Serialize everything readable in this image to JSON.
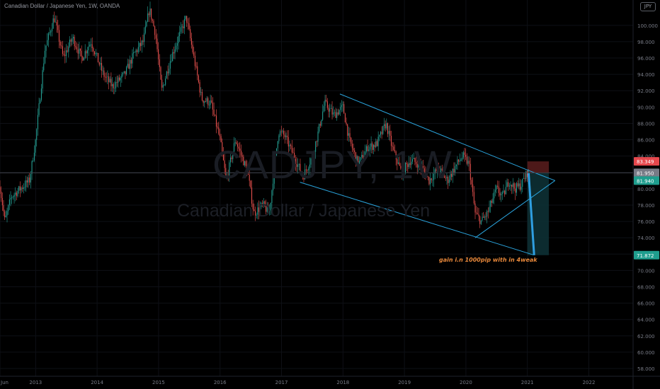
{
  "header": {
    "symbol_title": "Canadian Dollar / Japanese Yen, 1W, OANDA",
    "currency_badge": "JPY"
  },
  "watermark": {
    "symbol": "CADJPY, 1W",
    "description": "Canadian Dollar / Japanese Yen"
  },
  "annotation": {
    "text": "gain i.n 1000pip with in 4weak"
  },
  "colors": {
    "up": "#26a69a",
    "down": "#ef5350",
    "trendline": "#2aa4dd",
    "drop": "#2f9ee0",
    "crosshair": "#3c3f47",
    "grid": "#0e1016",
    "axis_text": "#787b86",
    "target_zone": "#0d3034",
    "stop_zone": "#5a1d1d",
    "label_stop": "#e5484d",
    "label_current": "#787b86",
    "label_target": "#1f9e8e",
    "annotation": "#e8883a"
  },
  "chart_data": {
    "type": "candlestick",
    "title": "Canadian Dollar / Japanese Yen, 1W, OANDA",
    "timeframe": "1W",
    "x_axis": {
      "tick_labels": [
        "Jun",
        "2013",
        "2014",
        "2015",
        "2016",
        "2017",
        "2018",
        "2019",
        "2020",
        "2021",
        "2022"
      ],
      "tick_times": [
        2012.42,
        2013.0,
        2014.0,
        2015.0,
        2016.0,
        2017.0,
        2018.0,
        2019.0,
        2020.0,
        2021.0,
        2022.0
      ],
      "xlim": [
        2012.42,
        2022.72
      ]
    },
    "y_axis": {
      "ticks": [
        58,
        60,
        62,
        64,
        66,
        68,
        70,
        72,
        74,
        76,
        78,
        80,
        82,
        84,
        86,
        88,
        90,
        92,
        94,
        96,
        98,
        100
      ],
      "tick_labels": [
        "58.000",
        "60.000",
        "62.000",
        "64.000",
        "66.000",
        "68.000",
        "70.000",
        "72.000",
        "74.000",
        "76.000",
        "78.000",
        "80.000",
        "82.000",
        "84.000",
        "86.000",
        "88.000",
        "90.000",
        "92.000",
        "94.000",
        "96.000",
        "98.000",
        "100.000"
      ],
      "ylim": [
        57.05,
        103.1
      ],
      "position": "right"
    },
    "price_anchors": [
      {
        "t": 2012.42,
        "p": 80.2
      },
      {
        "t": 2012.5,
        "p": 76.0
      },
      {
        "t": 2012.6,
        "p": 79.0
      },
      {
        "t": 2012.75,
        "p": 80.0
      },
      {
        "t": 2012.9,
        "p": 81.0
      },
      {
        "t": 2013.0,
        "p": 86.0
      },
      {
        "t": 2013.15,
        "p": 97.0
      },
      {
        "t": 2013.3,
        "p": 101.0
      },
      {
        "t": 2013.45,
        "p": 96.0
      },
      {
        "t": 2013.6,
        "p": 98.5
      },
      {
        "t": 2013.75,
        "p": 96.0
      },
      {
        "t": 2013.9,
        "p": 98.0
      },
      {
        "t": 2014.0,
        "p": 96.0
      },
      {
        "t": 2014.1,
        "p": 94.0
      },
      {
        "t": 2014.25,
        "p": 92.5
      },
      {
        "t": 2014.45,
        "p": 94.0
      },
      {
        "t": 2014.6,
        "p": 96.5
      },
      {
        "t": 2014.75,
        "p": 98.0
      },
      {
        "t": 2014.85,
        "p": 102.0
      },
      {
        "t": 2014.95,
        "p": 99.0
      },
      {
        "t": 2015.05,
        "p": 92.0
      },
      {
        "t": 2015.2,
        "p": 96.0
      },
      {
        "t": 2015.35,
        "p": 99.0
      },
      {
        "t": 2015.45,
        "p": 101.0
      },
      {
        "t": 2015.55,
        "p": 97.0
      },
      {
        "t": 2015.7,
        "p": 91.0
      },
      {
        "t": 2015.85,
        "p": 90.5
      },
      {
        "t": 2016.0,
        "p": 86.0
      },
      {
        "t": 2016.1,
        "p": 81.0
      },
      {
        "t": 2016.25,
        "p": 86.0
      },
      {
        "t": 2016.45,
        "p": 82.0
      },
      {
        "t": 2016.55,
        "p": 77.0
      },
      {
        "t": 2016.7,
        "p": 78.0
      },
      {
        "t": 2016.8,
        "p": 77.0
      },
      {
        "t": 2016.95,
        "p": 87.0
      },
      {
        "t": 2017.05,
        "p": 86.5
      },
      {
        "t": 2017.2,
        "p": 84.0
      },
      {
        "t": 2017.35,
        "p": 81.5
      },
      {
        "t": 2017.5,
        "p": 84.0
      },
      {
        "t": 2017.6,
        "p": 87.0
      },
      {
        "t": 2017.7,
        "p": 90.5
      },
      {
        "t": 2017.85,
        "p": 89.0
      },
      {
        "t": 2018.0,
        "p": 90.0
      },
      {
        "t": 2018.1,
        "p": 86.0
      },
      {
        "t": 2018.25,
        "p": 83.0
      },
      {
        "t": 2018.4,
        "p": 85.0
      },
      {
        "t": 2018.55,
        "p": 85.5
      },
      {
        "t": 2018.7,
        "p": 88.0
      },
      {
        "t": 2018.8,
        "p": 85.0
      },
      {
        "t": 2018.95,
        "p": 82.0
      },
      {
        "t": 2019.1,
        "p": 83.5
      },
      {
        "t": 2019.25,
        "p": 83.0
      },
      {
        "t": 2019.4,
        "p": 81.0
      },
      {
        "t": 2019.55,
        "p": 82.5
      },
      {
        "t": 2019.7,
        "p": 81.0
      },
      {
        "t": 2019.85,
        "p": 83.0
      },
      {
        "t": 2019.95,
        "p": 84.0
      },
      {
        "t": 2020.05,
        "p": 83.0
      },
      {
        "t": 2020.15,
        "p": 77.0
      },
      {
        "t": 2020.25,
        "p": 76.0
      },
      {
        "t": 2020.35,
        "p": 77.0
      },
      {
        "t": 2020.5,
        "p": 80.0
      },
      {
        "t": 2020.6,
        "p": 79.0
      },
      {
        "t": 2020.7,
        "p": 81.0
      },
      {
        "t": 2020.8,
        "p": 80.0
      },
      {
        "t": 2020.9,
        "p": 80.5
      },
      {
        "t": 2021.0,
        "p": 82.0
      },
      {
        "t": 2021.02,
        "p": 81.95
      }
    ],
    "projection": {
      "label": "projected drop",
      "start": {
        "t": 2021.02,
        "p": 81.95
      },
      "end": {
        "t": 2021.11,
        "p": 71.87
      }
    },
    "lines": [
      {
        "name": "upper-channel-line",
        "from": {
          "t": 2017.95,
          "p": 91.6
        },
        "to": {
          "t": 2021.0,
          "p": 82.3
        }
      },
      {
        "name": "lower-channel-line",
        "from": {
          "t": 2017.3,
          "p": 80.8
        },
        "to": {
          "t": 2021.1,
          "p": 71.9
        }
      },
      {
        "name": "rising-wedge-line",
        "from": {
          "t": 2020.15,
          "p": 74.0
        },
        "to": {
          "t": 2021.45,
          "p": 81.0
        }
      },
      {
        "name": "upper-extension-line",
        "from": {
          "t": 2021.0,
          "p": 82.3
        },
        "to": {
          "t": 2021.45,
          "p": 81.0
        }
      }
    ],
    "horizontal_line": {
      "name": "current-price-line",
      "p": 81.95
    },
    "position_tool": {
      "stop": {
        "t0": 2021.0,
        "t1": 2021.35,
        "top": 83.349,
        "bottom": 81.95
      },
      "target": {
        "t0": 2021.0,
        "t1": 2021.35,
        "top": 81.95,
        "bottom": 71.872
      }
    },
    "price_labels": [
      {
        "name": "stop-price-label",
        "value": "83.349",
        "p": 83.349,
        "color_key": "label_stop"
      },
      {
        "name": "current-price-label",
        "value": "81.950",
        "p": 81.95,
        "color_key": "label_current"
      },
      {
        "name": "last-close-label",
        "value": "81.940",
        "p": 81.0,
        "color_key": "label_target"
      },
      {
        "name": "target-price-label",
        "value": "71.872",
        "p": 71.872,
        "color_key": "label_target"
      }
    ]
  }
}
